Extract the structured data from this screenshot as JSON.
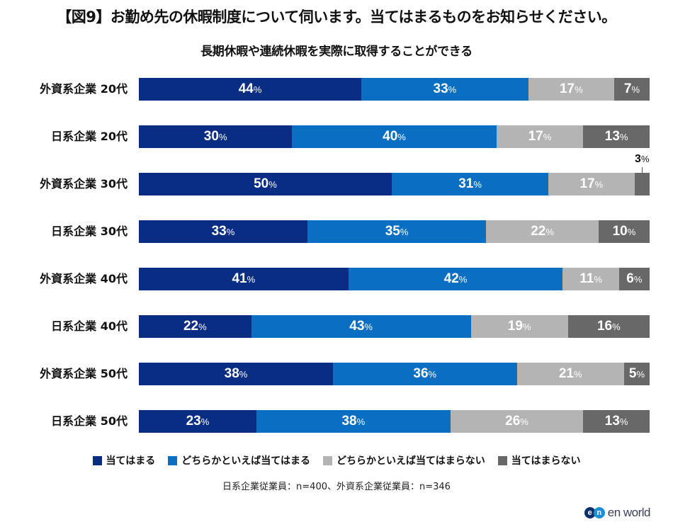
{
  "chart_data": {
    "type": "bar",
    "orientation": "horizontal",
    "stacked": true,
    "percent_stacked": true,
    "title": "【図9】お勤め先の休暇制度について伺います。当てはまるものをお知らせください。",
    "subtitle": "長期休暇や連続休暇を実際に取得することができる",
    "xlabel": "",
    "ylabel": "",
    "xlim": [
      0,
      100
    ],
    "grid": false,
    "legend_position": "bottom",
    "value_suffix": "%",
    "categories": [
      "外資系企業 20代",
      "日系企業 20代",
      "外資系企業 30代",
      "日系企業 30代",
      "外資系企業 40代",
      "日系企業 40代",
      "外資系企業 50代",
      "日系企業 50代"
    ],
    "series": [
      {
        "name": "当てはまる",
        "color": "#0a2d84",
        "values": [
          44,
          30,
          50,
          33,
          41,
          22,
          38,
          23
        ]
      },
      {
        "name": "どちらかといえば当てはまる",
        "color": "#0a6fc2",
        "values": [
          33,
          40,
          31,
          35,
          42,
          43,
          36,
          38
        ]
      },
      {
        "name": "どちらかといえば当てはまらない",
        "color": "#b4b4b4",
        "values": [
          17,
          17,
          17,
          22,
          11,
          19,
          21,
          26
        ]
      },
      {
        "name": "当てはまらない",
        "color": "#686868",
        "values": [
          7,
          13,
          3,
          10,
          6,
          16,
          5,
          13
        ]
      }
    ],
    "outside_labels": [
      {
        "category_index": 2,
        "series_index": 3
      }
    ]
  },
  "note": "日系企業従業員：n=400、外資系企業従業員：n=346",
  "logo": {
    "mark_left": "e",
    "mark_right": "n",
    "wordmark": "en world"
  }
}
